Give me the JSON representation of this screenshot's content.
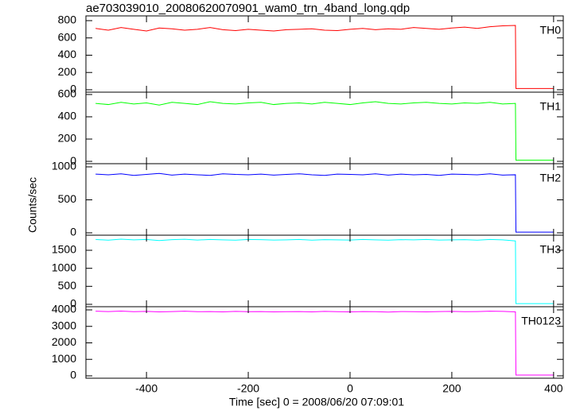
{
  "chart_data": [
    {
      "type": "line",
      "title": "ae703039010_20080620070901_wam0_trn_4band_long.qdp",
      "label": "TH0",
      "color": "#ff0000",
      "x": [
        -500,
        -475,
        -450,
        -425,
        -400,
        -375,
        -350,
        -325,
        -300,
        -275,
        -250,
        -225,
        -200,
        -175,
        -150,
        -125,
        -100,
        -75,
        -50,
        -25,
        0,
        25,
        50,
        75,
        100,
        125,
        150,
        175,
        200,
        225,
        250,
        275,
        300,
        325,
        326,
        400
      ],
      "values": [
        710,
        690,
        720,
        700,
        680,
        715,
        705,
        690,
        700,
        720,
        695,
        685,
        700,
        690,
        680,
        695,
        700,
        705,
        690,
        685,
        700,
        710,
        695,
        705,
        700,
        720,
        710,
        700,
        715,
        725,
        710,
        730,
        740,
        745,
        15,
        15
      ],
      "xlim": [
        -519,
        419
      ],
      "xticks": [
        -400,
        -200,
        0,
        200,
        400
      ],
      "ylim": [
        -28,
        855
      ],
      "yticks": [
        0,
        200,
        400,
        600,
        800
      ]
    },
    {
      "type": "line",
      "label": "TH1",
      "color": "#00ff00",
      "x": [
        -500,
        -475,
        -450,
        -425,
        -400,
        -375,
        -350,
        -325,
        -300,
        -275,
        -250,
        -225,
        -200,
        -175,
        -150,
        -125,
        -100,
        -75,
        -50,
        -25,
        0,
        25,
        50,
        75,
        100,
        125,
        150,
        175,
        200,
        225,
        250,
        275,
        300,
        325,
        326,
        400
      ],
      "values": [
        520,
        510,
        530,
        515,
        525,
        505,
        530,
        520,
        510,
        535,
        520,
        515,
        525,
        530,
        510,
        520,
        525,
        515,
        530,
        520,
        510,
        525,
        535,
        520,
        515,
        525,
        530,
        520,
        515,
        525,
        520,
        530,
        515,
        520,
        10,
        10
      ],
      "xlim": [
        -519,
        419
      ],
      "xticks": [
        -400,
        -200,
        0,
        200,
        400
      ],
      "ylim": [
        -21,
        621
      ],
      "yticks": [
        0,
        200,
        400,
        600
      ]
    },
    {
      "type": "line",
      "label": "TH2",
      "color": "#0000ff",
      "ylabel": "Counts/sec",
      "x": [
        -500,
        -475,
        -450,
        -425,
        -400,
        -375,
        -350,
        -325,
        -300,
        -275,
        -250,
        -225,
        -200,
        -175,
        -150,
        -125,
        -100,
        -75,
        -50,
        -25,
        0,
        25,
        50,
        75,
        100,
        125,
        150,
        175,
        200,
        225,
        250,
        275,
        300,
        325,
        326,
        400
      ],
      "values": [
        890,
        880,
        895,
        870,
        885,
        900,
        875,
        890,
        880,
        870,
        895,
        885,
        880,
        890,
        875,
        885,
        895,
        880,
        870,
        890,
        885,
        880,
        895,
        875,
        890,
        880,
        885,
        870,
        890,
        885,
        880,
        895,
        875,
        880,
        10,
        10
      ],
      "xlim": [
        -519,
        419
      ],
      "xticks": [
        -400,
        -200,
        0,
        200,
        400
      ],
      "ylim": [
        -36,
        1048
      ],
      "yticks": [
        0,
        500,
        1000
      ]
    },
    {
      "type": "line",
      "label": "TH3",
      "color": "#00ffff",
      "x": [
        -500,
        -475,
        -450,
        -425,
        -400,
        -375,
        -350,
        -325,
        -300,
        -275,
        -250,
        -225,
        -200,
        -175,
        -150,
        -125,
        -100,
        -75,
        -50,
        -25,
        0,
        25,
        50,
        75,
        100,
        125,
        150,
        175,
        200,
        225,
        250,
        275,
        300,
        325,
        326,
        400
      ],
      "values": [
        1800,
        1780,
        1810,
        1790,
        1800,
        1770,
        1795,
        1805,
        1785,
        1800,
        1790,
        1780,
        1800,
        1795,
        1785,
        1790,
        1800,
        1780,
        1795,
        1790,
        1785,
        1800,
        1790,
        1780,
        1795,
        1790,
        1800,
        1785,
        1790,
        1795,
        1780,
        1800,
        1790,
        1760,
        20,
        20
      ],
      "xlim": [
        -519,
        419
      ],
      "xticks": [
        -400,
        -200,
        0,
        200,
        400
      ],
      "ylim": [
        -66,
        1919
      ],
      "yticks": [
        0,
        500,
        1000,
        1500
      ]
    },
    {
      "type": "line",
      "label": "TH0123",
      "color": "#ff00ff",
      "xlabel": "Time [sec] 0 = 2008/06/20 07:09:01",
      "x": [
        -500,
        -475,
        -450,
        -425,
        -400,
        -375,
        -350,
        -325,
        -300,
        -275,
        -250,
        -225,
        -200,
        -175,
        -150,
        -125,
        -100,
        -75,
        -50,
        -25,
        0,
        25,
        50,
        75,
        100,
        125,
        150,
        175,
        200,
        225,
        250,
        275,
        300,
        325,
        326,
        400
      ],
      "values": [
        3920,
        3900,
        3930,
        3890,
        3910,
        3880,
        3900,
        3920,
        3890,
        3900,
        3880,
        3910,
        3890,
        3900,
        3880,
        3890,
        3900,
        3880,
        3910,
        3890,
        3880,
        3900,
        3890,
        3870,
        3900,
        3890,
        3880,
        3900,
        3910,
        3890,
        3900,
        3920,
        3910,
        3880,
        50,
        50
      ],
      "xlim": [
        -519,
        419
      ],
      "xticks": [
        -400,
        -200,
        0,
        200,
        400
      ],
      "ylim": [
        -145,
        4193
      ],
      "yticks": [
        0,
        1000,
        2000,
        3000,
        4000
      ]
    }
  ]
}
